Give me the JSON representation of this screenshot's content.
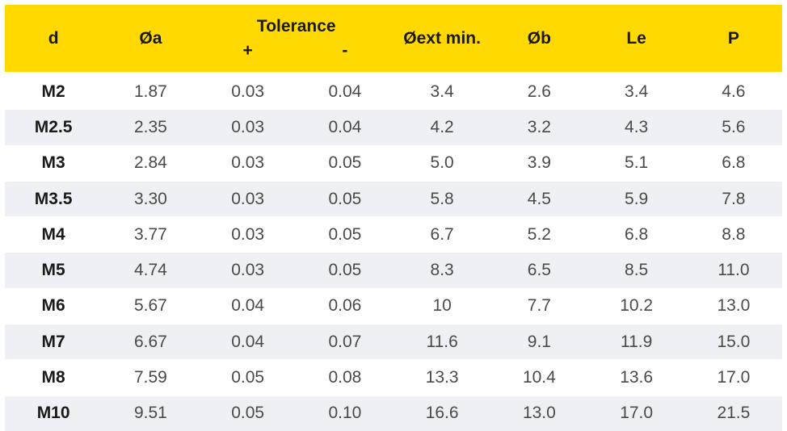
{
  "header": {
    "d": "d",
    "a": "Øa",
    "tolerance": "Tolerance",
    "tol_plus": "+",
    "tol_minus": "-",
    "ext_min": "Øext min.",
    "b": "Øb",
    "le": "Le",
    "p": "P"
  },
  "rows": [
    {
      "d": "M2",
      "a": "1.87",
      "plus": "0.03",
      "minus": "0.04",
      "ext": "3.4",
      "b": "2.6",
      "le": "3.4",
      "p": "4.6"
    },
    {
      "d": "M2.5",
      "a": "2.35",
      "plus": "0.03",
      "minus": "0.04",
      "ext": "4.2",
      "b": "3.2",
      "le": "4.3",
      "p": "5.6"
    },
    {
      "d": "M3",
      "a": "2.84",
      "plus": "0.03",
      "minus": "0.05",
      "ext": "5.0",
      "b": "3.9",
      "le": "5.1",
      "p": "6.8"
    },
    {
      "d": "M3.5",
      "a": "3.30",
      "plus": "0.03",
      "minus": "0.05",
      "ext": "5.8",
      "b": "4.5",
      "le": "5.9",
      "p": "7.8"
    },
    {
      "d": "M4",
      "a": "3.77",
      "plus": "0.03",
      "minus": "0.05",
      "ext": "6.7",
      "b": "5.2",
      "le": "6.8",
      "p": "8.8"
    },
    {
      "d": "M5",
      "a": "4.74",
      "plus": "0.03",
      "minus": "0.05",
      "ext": "8.3",
      "b": "6.5",
      "le": "8.5",
      "p": "11.0"
    },
    {
      "d": "M6",
      "a": "5.67",
      "plus": "0.04",
      "minus": "0.06",
      "ext": "10",
      "b": "7.7",
      "le": "10.2",
      "p": "13.0"
    },
    {
      "d": "M7",
      "a": "6.67",
      "plus": "0.04",
      "minus": "0.07",
      "ext": "11.6",
      "b": "9.1",
      "le": "11.9",
      "p": "15.0"
    },
    {
      "d": "M8",
      "a": "7.59",
      "plus": "0.05",
      "minus": "0.08",
      "ext": "13.3",
      "b": "10.4",
      "le": "13.6",
      "p": "17.0"
    },
    {
      "d": "M10",
      "a": "9.51",
      "plus": "0.05",
      "minus": "0.10",
      "ext": "16.6",
      "b": "13.0",
      "le": "17.0",
      "p": "21.5"
    }
  ],
  "colors": {
    "header_bg": "#ffd900",
    "stripe_bg": "#eef0f5",
    "text": "#4a4a4a"
  }
}
